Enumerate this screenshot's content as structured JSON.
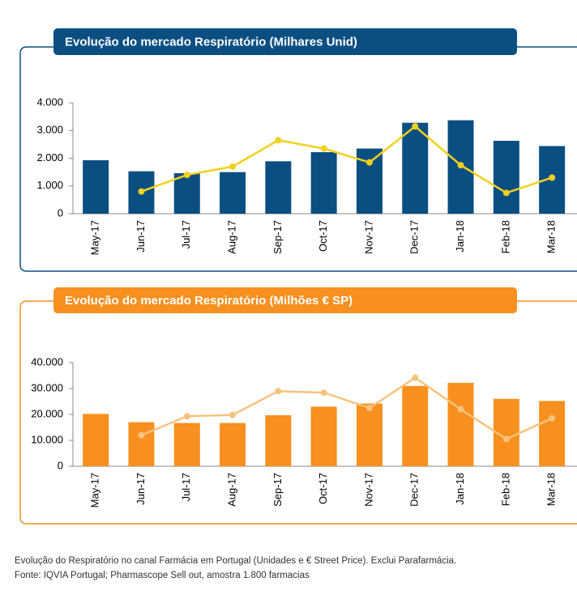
{
  "chart_data": [
    {
      "type": "bar",
      "title": "Evolução do mercado Respiratório (Milhares Unid)",
      "categories": [
        "May-17",
        "Jun-17",
        "Jul-17",
        "Aug-17",
        "Sep-17",
        "Oct-17",
        "Nov-17",
        "Dec-17",
        "Jan-18",
        "Feb-18",
        "Mar-18"
      ],
      "series": [
        {
          "type": "bar",
          "color": "#0b4f82",
          "values": [
            1930,
            1530,
            1460,
            1500,
            1890,
            2220,
            2350,
            3280,
            3370,
            2630,
            2440
          ]
        },
        {
          "type": "line",
          "color": "#f2d11c",
          "values": [
            null,
            800,
            1400,
            1700,
            2650,
            2350,
            1850,
            3150,
            1750,
            750,
            1300
          ]
        }
      ],
      "ylim": [
        0,
        4000
      ],
      "yticks": [
        0,
        {
          "value": 1000,
          "label": "1.000"
        },
        {
          "value": 2000,
          "label": "2.000"
        },
        {
          "value": 3000,
          "label": "3.000"
        },
        {
          "value": 4000,
          "label": "4.000"
        }
      ],
      "accent": "#0b4f82"
    },
    {
      "type": "bar",
      "title": "Evolução do mercado Respiratório (Milhões € SP)",
      "categories": [
        "May-17",
        "Jun-17",
        "Jul-17",
        "Aug-17",
        "Sep-17",
        "Oct-17",
        "Nov-17",
        "Dec-17",
        "Jan-18",
        "Feb-18",
        "Mar-18"
      ],
      "series": [
        {
          "type": "bar",
          "color": "#f7901e",
          "values": [
            20200,
            17000,
            16700,
            16700,
            19700,
            23000,
            24200,
            31000,
            32200,
            26000,
            25200
          ]
        },
        {
          "type": "line",
          "color": "#f7c27d",
          "values": [
            null,
            12000,
            19300,
            19800,
            29000,
            28400,
            22500,
            34200,
            22000,
            10500,
            18500
          ]
        }
      ],
      "ylim": [
        0,
        40000
      ],
      "yticks": [
        0,
        {
          "value": 10000,
          "label": "10.000"
        },
        {
          "value": 20000,
          "label": "20.000"
        },
        {
          "value": 30000,
          "label": "30.000"
        },
        {
          "value": 40000,
          "label": "40.000"
        }
      ],
      "accent": "#f7901e"
    }
  ],
  "notes": [
    "Evolução do Respiratório no canal Farmácia em Portugal (Unidades e € Street Price). Exclui Parafarmácia.",
    "Fonte: IQVIA Portugal; Pharmascope Sell out, amostra 1.800 farmacias"
  ]
}
